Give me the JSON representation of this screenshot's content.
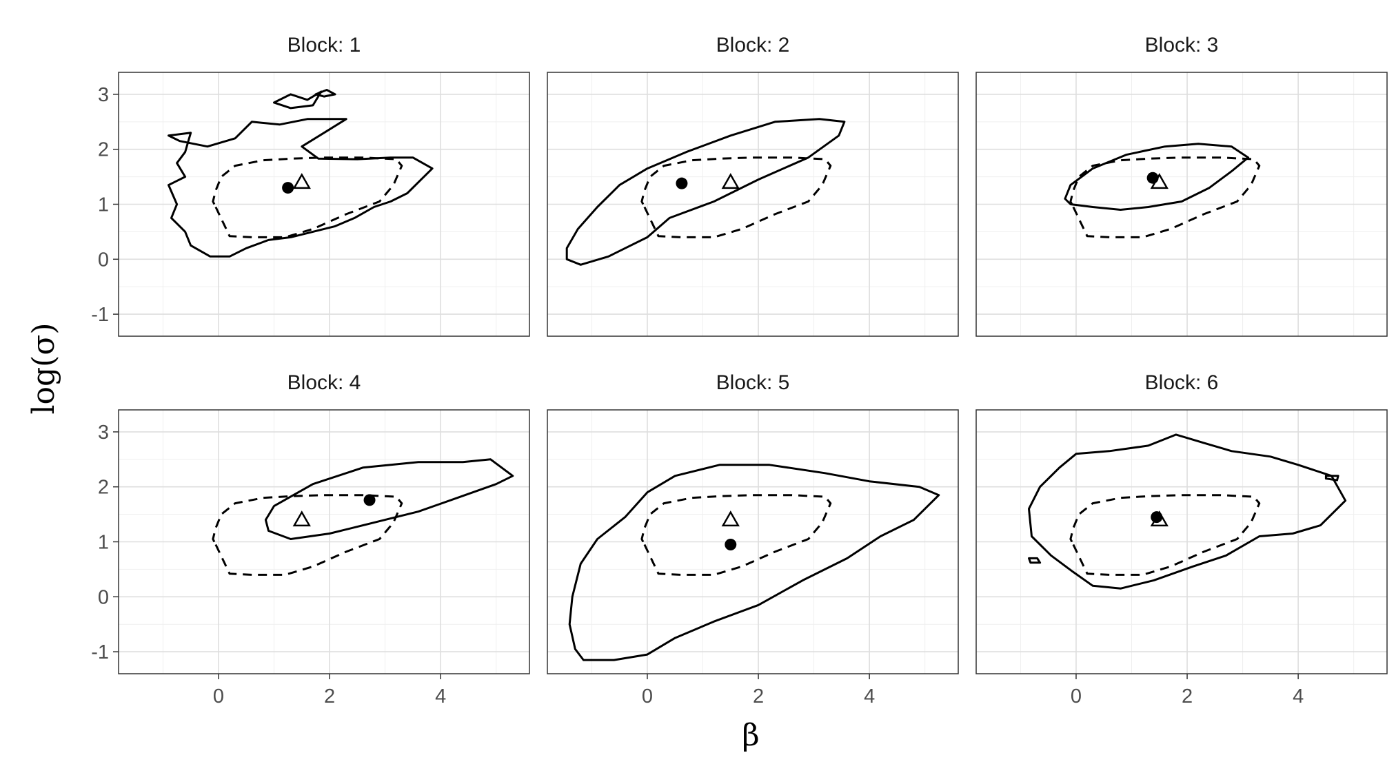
{
  "chart_data": {
    "type": "contour",
    "facet_label_prefix": "Block: ",
    "xlabel": "β",
    "ylabel": "log(σ)",
    "xlim": [
      -1.8,
      5.6
    ],
    "ylim": [
      -1.4,
      3.4
    ],
    "x_ticks": [
      0,
      2,
      4
    ],
    "y_ticks": [
      3,
      2,
      1,
      0,
      -1
    ],
    "x_tick_labels": [
      "0",
      "2",
      "4"
    ],
    "y_tick_labels": [
      "3",
      "2",
      "1",
      "0",
      "-1"
    ],
    "grid": true,
    "reference_region_dashed": [
      [
        -0.05,
        0.95
      ],
      [
        0.2,
        0.42
      ],
      [
        0.6,
        0.4
      ],
      [
        1.2,
        0.4
      ],
      [
        1.7,
        0.55
      ],
      [
        2.3,
        0.82
      ],
      [
        2.9,
        1.05
      ],
      [
        3.15,
        1.35
      ],
      [
        3.3,
        1.7
      ],
      [
        3.2,
        1.82
      ],
      [
        2.6,
        1.85
      ],
      [
        1.9,
        1.85
      ],
      [
        1.3,
        1.83
      ],
      [
        0.8,
        1.8
      ],
      [
        0.3,
        1.7
      ],
      [
        0.05,
        1.5
      ],
      [
        -0.05,
        1.25
      ],
      [
        -0.1,
        1.05
      ],
      [
        -0.05,
        0.95
      ]
    ],
    "reference_point_triangle": {
      "x": 1.5,
      "y": 1.4
    },
    "panels": [
      {
        "block": "1",
        "point": {
          "x": 1.25,
          "y": 1.3
        },
        "regions": [
          [
            [
              -0.15,
              0.05
            ],
            [
              0.2,
              0.05
            ],
            [
              0.5,
              0.2
            ],
            [
              0.9,
              0.35
            ],
            [
              1.3,
              0.4
            ],
            [
              1.7,
              0.5
            ],
            [
              2.1,
              0.6
            ],
            [
              2.45,
              0.75
            ],
            [
              2.8,
              0.95
            ],
            [
              3.1,
              1.05
            ],
            [
              3.4,
              1.2
            ],
            [
              3.65,
              1.45
            ],
            [
              3.85,
              1.65
            ],
            [
              3.5,
              1.85
            ],
            [
              3.1,
              1.85
            ],
            [
              2.5,
              1.82
            ],
            [
              1.8,
              1.83
            ],
            [
              1.5,
              2.05
            ],
            [
              1.9,
              2.3
            ],
            [
              2.3,
              2.55
            ],
            [
              1.6,
              2.55
            ],
            [
              1.1,
              2.45
            ],
            [
              0.6,
              2.5
            ],
            [
              0.3,
              2.2
            ],
            [
              -0.2,
              2.05
            ],
            [
              -0.7,
              2.15
            ],
            [
              -0.9,
              2.25
            ],
            [
              -0.5,
              2.3
            ],
            [
              -0.6,
              1.95
            ],
            [
              -0.75,
              1.75
            ],
            [
              -0.6,
              1.5
            ],
            [
              -0.9,
              1.35
            ],
            [
              -0.75,
              1.0
            ],
            [
              -0.85,
              0.75
            ],
            [
              -0.6,
              0.5
            ],
            [
              -0.5,
              0.25
            ],
            [
              -0.15,
              0.05
            ]
          ],
          [
            [
              1.0,
              2.85
            ],
            [
              1.3,
              3.0
            ],
            [
              1.6,
              2.9
            ],
            [
              1.85,
              3.05
            ],
            [
              1.7,
              2.8
            ],
            [
              1.3,
              2.75
            ],
            [
              1.0,
              2.85
            ]
          ],
          [
            [
              1.75,
              3.0
            ],
            [
              1.95,
              3.08
            ],
            [
              2.1,
              3.0
            ],
            [
              1.9,
              2.96
            ],
            [
              1.75,
              3.0
            ]
          ]
        ]
      },
      {
        "block": "2",
        "point": {
          "x": 0.62,
          "y": 1.38
        },
        "regions": [
          [
            [
              -1.45,
              0.0
            ],
            [
              -1.2,
              -0.1
            ],
            [
              -0.7,
              0.05
            ],
            [
              0.0,
              0.4
            ],
            [
              0.4,
              0.75
            ],
            [
              1.2,
              1.05
            ],
            [
              2.0,
              1.45
            ],
            [
              2.9,
              1.85
            ],
            [
              3.45,
              2.25
            ],
            [
              3.55,
              2.5
            ],
            [
              3.1,
              2.55
            ],
            [
              2.3,
              2.5
            ],
            [
              1.5,
              2.25
            ],
            [
              0.7,
              1.95
            ],
            [
              0.0,
              1.65
            ],
            [
              -0.5,
              1.35
            ],
            [
              -0.9,
              0.95
            ],
            [
              -1.25,
              0.55
            ],
            [
              -1.45,
              0.2
            ],
            [
              -1.45,
              0.0
            ]
          ]
        ]
      },
      {
        "block": "3",
        "point": {
          "x": 1.38,
          "y": 1.48
        },
        "regions": [
          [
            [
              -0.1,
              1.0
            ],
            [
              0.3,
              0.95
            ],
            [
              0.8,
              0.9
            ],
            [
              1.3,
              0.95
            ],
            [
              1.9,
              1.05
            ],
            [
              2.4,
              1.3
            ],
            [
              2.8,
              1.6
            ],
            [
              3.1,
              1.85
            ],
            [
              2.8,
              2.05
            ],
            [
              2.2,
              2.1
            ],
            [
              1.6,
              2.05
            ],
            [
              0.9,
              1.9
            ],
            [
              0.3,
              1.65
            ],
            [
              -0.1,
              1.35
            ],
            [
              -0.2,
              1.1
            ],
            [
              -0.1,
              1.0
            ]
          ]
        ]
      },
      {
        "block": "4",
        "point": {
          "x": 2.72,
          "y": 1.76
        },
        "regions": [
          [
            [
              0.9,
              1.2
            ],
            [
              1.3,
              1.05
            ],
            [
              2.0,
              1.15
            ],
            [
              2.8,
              1.35
            ],
            [
              3.6,
              1.55
            ],
            [
              4.3,
              1.8
            ],
            [
              5.0,
              2.05
            ],
            [
              5.3,
              2.2
            ],
            [
              4.9,
              2.5
            ],
            [
              4.4,
              2.45
            ],
            [
              3.6,
              2.45
            ],
            [
              2.6,
              2.35
            ],
            [
              1.7,
              2.05
            ],
            [
              1.0,
              1.65
            ],
            [
              0.85,
              1.4
            ],
            [
              0.9,
              1.2
            ]
          ]
        ]
      },
      {
        "block": "5",
        "point": {
          "x": 1.5,
          "y": 0.95
        },
        "regions": [
          [
            [
              -1.3,
              -0.95
            ],
            [
              -1.15,
              -1.15
            ],
            [
              -0.6,
              -1.15
            ],
            [
              0.0,
              -1.05
            ],
            [
              0.5,
              -0.75
            ],
            [
              1.2,
              -0.45
            ],
            [
              2.0,
              -0.15
            ],
            [
              2.8,
              0.3
            ],
            [
              3.6,
              0.7
            ],
            [
              4.2,
              1.1
            ],
            [
              4.8,
              1.4
            ],
            [
              5.25,
              1.85
            ],
            [
              4.9,
              2.0
            ],
            [
              4.0,
              2.1
            ],
            [
              3.2,
              2.25
            ],
            [
              2.2,
              2.4
            ],
            [
              1.3,
              2.4
            ],
            [
              0.5,
              2.2
            ],
            [
              0.0,
              1.9
            ],
            [
              -0.4,
              1.45
            ],
            [
              -0.9,
              1.05
            ],
            [
              -1.2,
              0.6
            ],
            [
              -1.35,
              0.0
            ],
            [
              -1.4,
              -0.5
            ],
            [
              -1.3,
              -0.95
            ]
          ]
        ]
      },
      {
        "block": "6",
        "point": {
          "x": 1.45,
          "y": 1.45
        },
        "regions": [
          [
            [
              0.3,
              0.2
            ],
            [
              0.8,
              0.15
            ],
            [
              1.4,
              0.3
            ],
            [
              2.1,
              0.55
            ],
            [
              2.7,
              0.75
            ],
            [
              3.3,
              1.1
            ],
            [
              3.9,
              1.15
            ],
            [
              4.4,
              1.3
            ],
            [
              4.85,
              1.75
            ],
            [
              4.6,
              2.2
            ],
            [
              4.0,
              2.4
            ],
            [
              3.5,
              2.55
            ],
            [
              2.8,
              2.65
            ],
            [
              2.3,
              2.8
            ],
            [
              1.8,
              2.95
            ],
            [
              1.3,
              2.75
            ],
            [
              0.6,
              2.65
            ],
            [
              0.0,
              2.6
            ],
            [
              -0.3,
              2.35
            ],
            [
              -0.65,
              2.0
            ],
            [
              -0.85,
              1.6
            ],
            [
              -0.8,
              1.1
            ],
            [
              -0.45,
              0.75
            ],
            [
              -0.05,
              0.45
            ],
            [
              0.3,
              0.2
            ]
          ],
          [
            [
              -0.85,
              0.7
            ],
            [
              -0.7,
              0.7
            ],
            [
              -0.65,
              0.62
            ],
            [
              -0.82,
              0.62
            ],
            [
              -0.85,
              0.7
            ]
          ],
          [
            [
              4.5,
              2.2
            ],
            [
              4.72,
              2.2
            ],
            [
              4.7,
              2.12
            ],
            [
              4.5,
              2.15
            ],
            [
              4.5,
              2.2
            ]
          ]
        ]
      }
    ]
  }
}
